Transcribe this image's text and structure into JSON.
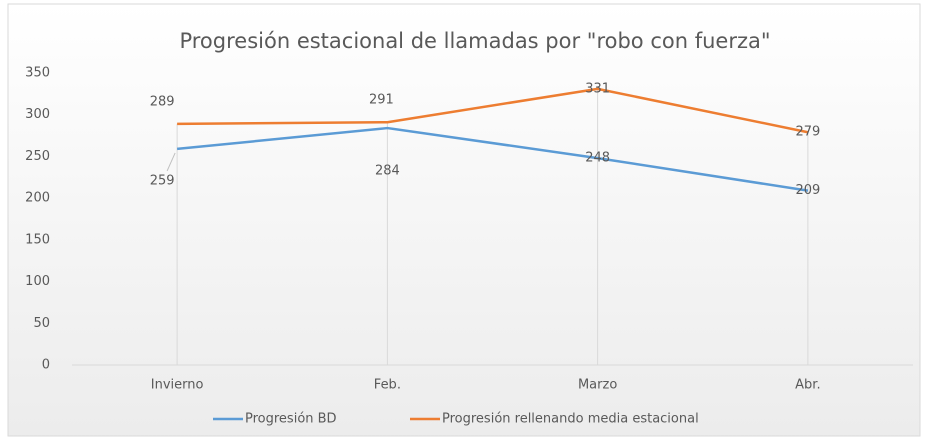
{
  "chart_data": {
    "type": "line",
    "title": "Progresión estacional  de llamadas  por \"robo con fuerza\"",
    "categories": [
      "Invierno",
      "Feb.",
      "Marzo",
      "Abr."
    ],
    "series": [
      {
        "name": "Progresión BD",
        "color": "#5b9bd5",
        "values": [
          259,
          284,
          248,
          209
        ]
      },
      {
        "name": "Progresión rellenando media estacional",
        "color": "#ed7d31",
        "values": [
          289,
          291,
          331,
          279
        ]
      }
    ],
    "ylim": [
      0,
      350
    ],
    "yticks": [
      0,
      50,
      100,
      150,
      200,
      250,
      300,
      350
    ],
    "drop_lines": true,
    "legend": "bottom"
  }
}
